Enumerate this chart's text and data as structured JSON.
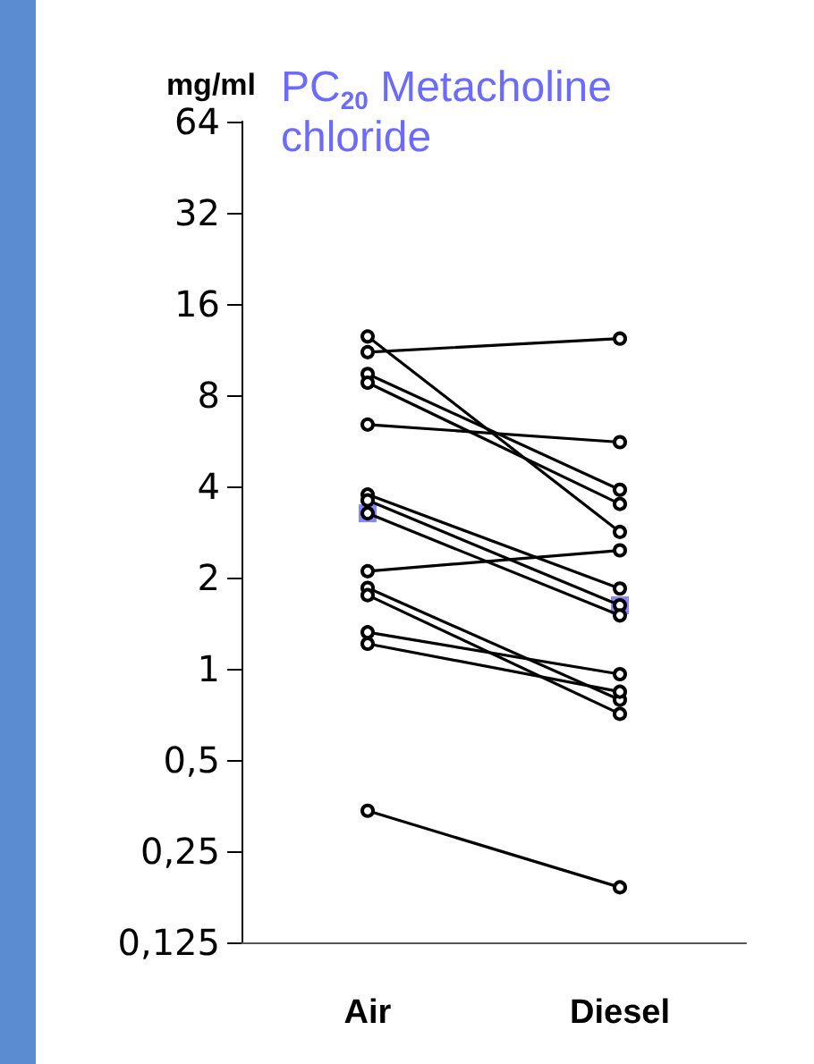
{
  "chart_data": {
    "type": "line",
    "title": "PC$_{20}$ Metacholine chloride",
    "ylabel": "mg/ml",
    "categories": [
      "Air",
      "Diesel"
    ],
    "log": "y",
    "ylim": [
      0.125,
      64
    ],
    "yticks": [
      {
        "value": 0.125,
        "label": "0,125"
      },
      {
        "value": 0.25,
        "label": "0,25"
      },
      {
        "value": 0.5,
        "label": "0,5"
      },
      1,
      2,
      4,
      8,
      16,
      32,
      64
    ],
    "grid": false,
    "marker": "circle",
    "line_style": "solid",
    "series": [
      {
        "color": "#000000",
        "values": [
          11.1,
          12.3
        ]
      },
      {
        "color": "#000000",
        "values": [
          12.5,
          2.83
        ]
      },
      {
        "color": "#000000",
        "values": [
          9.4,
          3.9
        ]
      },
      {
        "color": "#000000",
        "values": [
          8.8,
          3.5
        ]
      },
      {
        "color": "#000000",
        "values": [
          6.4,
          5.6
        ]
      },
      {
        "color": "#000000",
        "values": [
          3.76,
          1.84
        ]
      },
      {
        "color": "#000000",
        "values": [
          3.6,
          1.62
        ]
      },
      {
        "color": "#000000",
        "values": [
          3.26,
          1.5
        ]
      },
      {
        "color": "#000000",
        "values": [
          2.1,
          2.46
        ]
      },
      {
        "color": "#000000",
        "values": [
          1.85,
          0.79
        ]
      },
      {
        "color": "#000000",
        "values": [
          1.75,
          0.71
        ]
      },
      {
        "color": "#000000",
        "values": [
          1.32,
          0.96
        ]
      },
      {
        "color": "#000000",
        "values": [
          1.21,
          0.84
        ]
      },
      {
        "color": "#000000",
        "values": [
          0.34,
          0.19
        ]
      },
      {
        "type": "scatter",
        "marker": "square",
        "color": "#6b6bff",
        "values": [
          3.26,
          1.62
        ]
      }
    ]
  }
}
